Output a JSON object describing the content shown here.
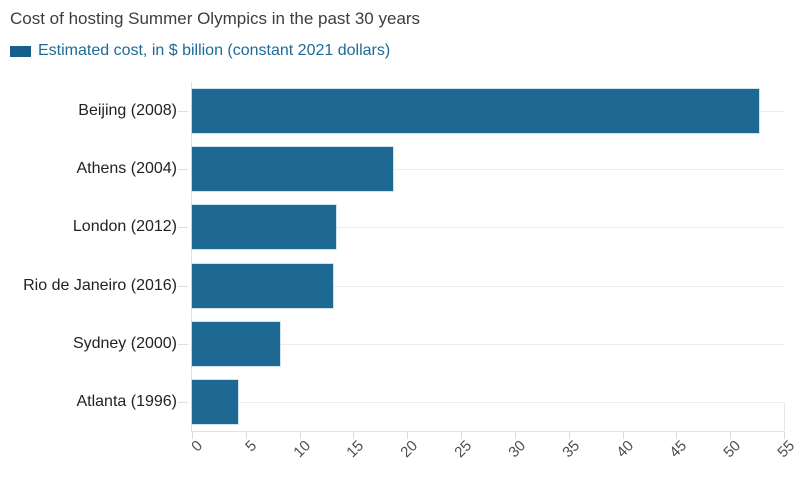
{
  "header": {
    "title": "Cost of hosting Summer Olympics in the past 30 years",
    "legend_label": "Estimated cost, in $ billion (constant 2021 dollars)"
  },
  "colors": {
    "bar": "#1e6994",
    "legend_swatch": "#17608b",
    "legend_text": "#1d6a96",
    "gridline": "#ededed",
    "axis_line": "#e2e2e2",
    "title_text": "#3d3d3d",
    "category_text": "#222222",
    "tick_text": "#4f4f4f",
    "background": "#ffffff"
  },
  "chart_data": {
    "type": "bar",
    "orientation": "horizontal",
    "title": "Cost of hosting Summer Olympics in the past 30 years",
    "series_label": "Estimated cost, in $ billion (constant 2021 dollars)",
    "categories": [
      "Beijing (2008)",
      "Athens (2004)",
      "London (2012)",
      "Rio de Janeiro (2016)",
      "Sydney (2000)",
      "Atlanta (1996)"
    ],
    "values": [
      52.7,
      18.7,
      13.4,
      13.1,
      8.2,
      4.3
    ],
    "xlabel": "",
    "ylabel": "",
    "xlim": [
      0,
      55
    ],
    "x_ticks": [
      0,
      5,
      10,
      15,
      20,
      25,
      30,
      35,
      40,
      45,
      50,
      55
    ],
    "grid": "row-center-horizontal-gridlines",
    "legend_position": "top-left",
    "tick_label_rotation_deg": -45
  }
}
